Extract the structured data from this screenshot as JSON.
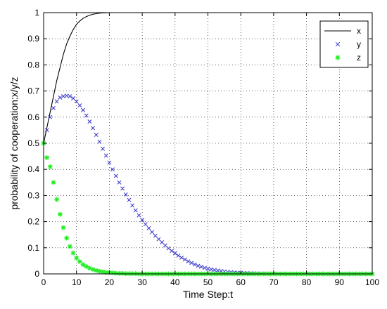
{
  "chart_data": {
    "type": "line",
    "title": "",
    "xlabel": "Time Step:t",
    "ylabel": "probability of cooperation:x/y/z",
    "xlim": [
      0,
      100
    ],
    "ylim": [
      0,
      1
    ],
    "xticks": [
      "0",
      "10",
      "20",
      "30",
      "40",
      "50",
      "60",
      "70",
      "80",
      "90",
      "100"
    ],
    "yticks": [
      "0",
      "0.1",
      "0.2",
      "0.3",
      "0.4",
      "0.5",
      "0.6",
      "0.7",
      "0.8",
      "0.9",
      "1"
    ],
    "grid": true,
    "legend_position": "top-right",
    "series": [
      {
        "name": "x",
        "style": "line",
        "color": "#000000",
        "x": [
          0,
          1,
          2,
          3,
          4,
          5,
          6,
          7,
          8,
          9,
          10,
          11,
          12,
          13,
          14,
          15,
          16,
          17,
          18,
          19,
          20
        ],
        "y": [
          0.5,
          0.56,
          0.62,
          0.68,
          0.74,
          0.79,
          0.84,
          0.88,
          0.91,
          0.935,
          0.955,
          0.968,
          0.978,
          0.985,
          0.99,
          0.994,
          0.996,
          0.998,
          0.999,
          0.9995,
          1.0
        ]
      },
      {
        "name": "y",
        "style": "x-marker",
        "color": "#3333cc",
        "x": [
          0,
          1,
          2,
          3,
          4,
          5,
          6,
          7,
          8,
          9,
          10,
          11,
          12,
          13,
          14,
          15,
          16,
          17,
          18,
          19,
          20,
          21,
          22,
          23,
          24,
          25,
          26,
          27,
          28,
          29,
          30,
          31,
          32,
          33,
          34,
          35,
          36,
          37,
          38,
          39,
          40,
          41,
          42,
          43,
          44,
          45,
          46,
          47,
          48,
          49,
          50,
          51,
          52,
          53,
          54,
          55,
          56,
          57,
          58,
          59,
          60,
          61,
          62,
          63,
          64,
          65,
          66,
          67,
          68,
          69,
          70,
          71,
          72,
          73,
          74,
          75,
          76,
          77,
          78,
          79,
          80,
          81,
          82,
          83,
          84,
          85,
          86,
          87,
          88,
          89,
          90,
          91,
          92,
          93,
          94,
          95,
          96,
          97,
          98,
          99,
          100
        ],
        "y": [
          0.5,
          0.55,
          0.6,
          0.635,
          0.66,
          0.675,
          0.68,
          0.682,
          0.68,
          0.672,
          0.66,
          0.645,
          0.627,
          0.606,
          0.583,
          0.558,
          0.532,
          0.506,
          0.479,
          0.453,
          0.426,
          0.4,
          0.375,
          0.35,
          0.327,
          0.304,
          0.283,
          0.262,
          0.243,
          0.224,
          0.206,
          0.19,
          0.175,
          0.16,
          0.146,
          0.133,
          0.121,
          0.109,
          0.098,
          0.088,
          0.079,
          0.07,
          0.062,
          0.055,
          0.048,
          0.042,
          0.036,
          0.031,
          0.027,
          0.023,
          0.02,
          0.017,
          0.015,
          0.013,
          0.011,
          0.009,
          0.0075,
          0.0065,
          0.0055,
          0.0045,
          0.0038,
          0.0032,
          0.0027,
          0.0022,
          0.0018,
          0.0015,
          0.0012,
          0.001,
          0.0008,
          0.0007,
          0.0006,
          0.0005,
          0.0004,
          0.0003,
          0.0003,
          0.0002,
          0.0002,
          0.0002,
          0.0001,
          0.0001,
          0.0001,
          0.0001,
          0.0001,
          0,
          0,
          0,
          0,
          0,
          0,
          0,
          0,
          0,
          0,
          0,
          0,
          0,
          0,
          0,
          0,
          0,
          0
        ]
      },
      {
        "name": "z",
        "style": "star-marker",
        "color": "#22ee22",
        "x": [
          0,
          1,
          2,
          3,
          4,
          5,
          6,
          7,
          8,
          9,
          10,
          11,
          12,
          13,
          14,
          15,
          16,
          17,
          18,
          19,
          20,
          21,
          22,
          23,
          24,
          25,
          26,
          27,
          28,
          29,
          30,
          31,
          32,
          33,
          34,
          35,
          36,
          37,
          38,
          39,
          40,
          41,
          42,
          43,
          44,
          45,
          46,
          47,
          48,
          49,
          50,
          51,
          52,
          53,
          54,
          55,
          56,
          57,
          58,
          59,
          60,
          61,
          62,
          63,
          64,
          65,
          66,
          67,
          68,
          69,
          70,
          71,
          72,
          73,
          74,
          75,
          76,
          77,
          78,
          79,
          80,
          81,
          82,
          83,
          84,
          85,
          86,
          87,
          88,
          89,
          90,
          91,
          92,
          93,
          94,
          95,
          96,
          97,
          98,
          99,
          100
        ],
        "y": [
          0.5,
          0.445,
          0.41,
          0.35,
          0.285,
          0.228,
          0.177,
          0.137,
          0.105,
          0.08,
          0.061,
          0.047,
          0.036,
          0.028,
          0.022,
          0.017,
          0.013,
          0.01,
          0.008,
          0.006,
          0.005,
          0.004,
          0.003,
          0.002,
          0.002,
          0.001,
          0.001,
          0.001,
          0.001,
          0,
          0,
          0,
          0,
          0,
          0,
          0,
          0,
          0,
          0,
          0,
          0,
          0,
          0,
          0,
          0,
          0,
          0,
          0,
          0,
          0,
          0,
          0,
          0,
          0,
          0,
          0,
          0,
          0,
          0,
          0,
          0,
          0,
          0,
          0,
          0,
          0,
          0,
          0,
          0,
          0,
          0,
          0,
          0,
          0,
          0,
          0,
          0,
          0,
          0,
          0,
          0,
          0,
          0,
          0,
          0,
          0,
          0,
          0,
          0,
          0,
          0,
          0,
          0,
          0,
          0,
          0,
          0,
          0,
          0,
          0,
          0
        ]
      }
    ]
  }
}
